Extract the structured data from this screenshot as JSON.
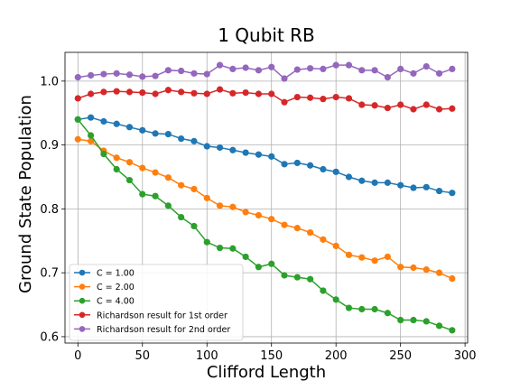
{
  "chart_data": {
    "type": "line",
    "title": "1 Qubit RB",
    "xlabel": "Clifford Length",
    "ylabel": "Ground State Population",
    "xlim": [
      -10,
      302
    ],
    "ylim": [
      0.59,
      1.045
    ],
    "xticks": [
      0,
      50,
      100,
      150,
      200,
      250,
      300
    ],
    "xtick_labels": [
      "0",
      "50",
      "100",
      "150",
      "200",
      "250",
      "300"
    ],
    "yticks": [
      0.6,
      0.7,
      0.8,
      0.9,
      1.0
    ],
    "ytick_labels": [
      "0.6",
      "0.7",
      "0.8",
      "0.9",
      "1.0"
    ],
    "grid": true,
    "legend_position": "lower-left",
    "x": [
      0,
      10,
      20,
      30,
      40,
      50,
      60,
      70,
      80,
      90,
      100,
      110,
      120,
      130,
      140,
      150,
      160,
      170,
      180,
      190,
      200,
      210,
      220,
      230,
      240,
      250,
      260,
      270,
      280,
      290
    ],
    "series": [
      {
        "name": "C = 1.00",
        "color": "#1f77b4",
        "values": [
          0.94,
          0.943,
          0.937,
          0.933,
          0.928,
          0.923,
          0.918,
          0.917,
          0.91,
          0.906,
          0.898,
          0.896,
          0.892,
          0.888,
          0.885,
          0.882,
          0.87,
          0.872,
          0.868,
          0.862,
          0.858,
          0.85,
          0.844,
          0.841,
          0.841,
          0.837,
          0.833,
          0.834,
          0.828,
          0.825
        ]
      },
      {
        "name": "C = 2.00",
        "color": "#ff7f0e",
        "values": [
          0.909,
          0.906,
          0.891,
          0.88,
          0.873,
          0.864,
          0.857,
          0.849,
          0.837,
          0.831,
          0.817,
          0.805,
          0.803,
          0.795,
          0.79,
          0.784,
          0.775,
          0.77,
          0.763,
          0.752,
          0.742,
          0.728,
          0.724,
          0.719,
          0.725,
          0.709,
          0.708,
          0.705,
          0.7,
          0.691
        ]
      },
      {
        "name": "C = 4.00",
        "color": "#2ca02c",
        "values": [
          0.94,
          0.915,
          0.886,
          0.862,
          0.845,
          0.823,
          0.82,
          0.805,
          0.787,
          0.773,
          0.748,
          0.739,
          0.738,
          0.725,
          0.709,
          0.714,
          0.696,
          0.693,
          0.69,
          0.672,
          0.658,
          0.645,
          0.643,
          0.643,
          0.637,
          0.626,
          0.626,
          0.624,
          0.617,
          0.61
        ]
      },
      {
        "name": "Richardson result for 1st order",
        "color": "#d62728",
        "values": [
          0.973,
          0.98,
          0.983,
          0.984,
          0.983,
          0.982,
          0.98,
          0.986,
          0.983,
          0.981,
          0.98,
          0.987,
          0.981,
          0.982,
          0.98,
          0.98,
          0.967,
          0.975,
          0.974,
          0.972,
          0.975,
          0.973,
          0.963,
          0.962,
          0.958,
          0.963,
          0.956,
          0.963,
          0.956,
          0.957
        ]
      },
      {
        "name": "Richardson result for 2nd order",
        "color": "#9467bd",
        "values": [
          1.006,
          1.009,
          1.011,
          1.012,
          1.01,
          1.007,
          1.008,
          1.017,
          1.016,
          1.012,
          1.011,
          1.025,
          1.019,
          1.021,
          1.017,
          1.022,
          1.004,
          1.018,
          1.02,
          1.019,
          1.025,
          1.025,
          1.017,
          1.017,
          1.006,
          1.019,
          1.012,
          1.023,
          1.012,
          1.019
        ]
      }
    ]
  }
}
